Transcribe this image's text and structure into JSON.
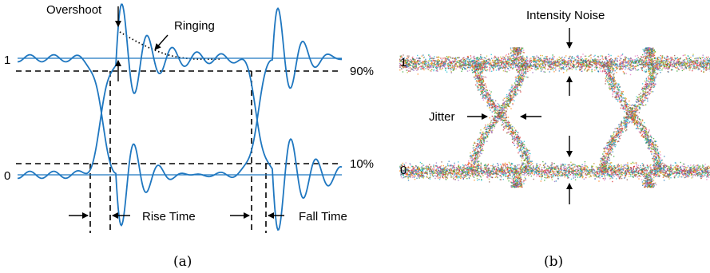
{
  "panel_a": {
    "caption": "(a)",
    "level_high": "1",
    "level_low": "0",
    "pct_high": "90%",
    "pct_low": "10%",
    "overshoot": "Overshoot",
    "ringing": "Ringing",
    "rise_time": "Rise Time",
    "fall_time": "Fall Time",
    "signal_color": "#1f77c0"
  },
  "panel_b": {
    "caption": "(b)",
    "level_high": "1",
    "level_low": "0",
    "intensity_noise": "Intensity Noise",
    "jitter": "Jitter",
    "dot_colors": [
      "#d62728",
      "#2ca02c",
      "#1f77b4",
      "#ff7f0e",
      "#9467bd",
      "#17becf",
      "#8c564b",
      "#e377c2",
      "#bcbd22"
    ]
  }
}
